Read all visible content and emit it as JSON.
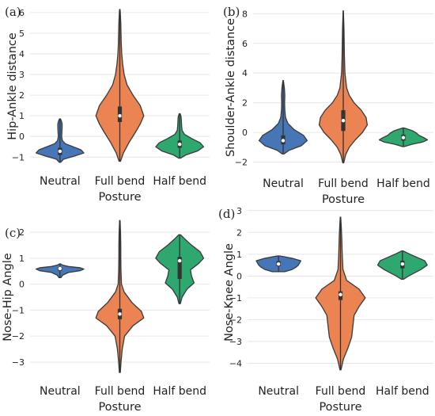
{
  "colors": {
    "grid": "#e6e6e6",
    "outline": "#3a3a3a",
    "box": "#333333",
    "median": "#ffffff",
    "series": [
      "#4676b5",
      "#eb8452",
      "#2ea86f"
    ]
  },
  "chart_data": [
    {
      "panel": "(a)",
      "type": "violin",
      "categories": [
        "Neutral",
        "Full bend",
        "Half bend"
      ],
      "xlabel": "Posture",
      "ylabel": "Hip-Ankle distance",
      "ylim": [
        -1.45,
        6.3
      ],
      "yticks": [
        -1,
        0,
        1,
        2,
        3,
        4,
        5,
        6
      ],
      "grid": true,
      "violins": [
        {
          "name": "Neutral",
          "min": -1.25,
          "max": 0.85,
          "q1": -0.9,
          "median": -0.72,
          "q3": -0.55,
          "density": [
            [
              -1.25,
              0.03
            ],
            [
              -1.1,
              0.15
            ],
            [
              -0.95,
              0.6
            ],
            [
              -0.8,
              1.0
            ],
            [
              -0.65,
              0.88
            ],
            [
              -0.5,
              0.55
            ],
            [
              -0.35,
              0.22
            ],
            [
              -0.2,
              0.1
            ],
            [
              0,
              0.07
            ],
            [
              0.2,
              0.08
            ],
            [
              0.45,
              0.09
            ],
            [
              0.6,
              0.09
            ],
            [
              0.75,
              0.06
            ],
            [
              0.85,
              0.02
            ]
          ]
        },
        {
          "name": "Full bend",
          "min": -1.2,
          "max": 6.15,
          "q1": 0.7,
          "median": 1.0,
          "q3": 1.45,
          "density": [
            [
              -1.2,
              0.03
            ],
            [
              -0.8,
              0.15
            ],
            [
              -0.3,
              0.38
            ],
            [
              0.2,
              0.65
            ],
            [
              0.6,
              0.85
            ],
            [
              1.0,
              1.0
            ],
            [
              1.5,
              0.85
            ],
            [
              2.0,
              0.55
            ],
            [
              2.5,
              0.3
            ],
            [
              3.0,
              0.18
            ],
            [
              3.5,
              0.12
            ],
            [
              4.0,
              0.08
            ],
            [
              4.5,
              0.06
            ],
            [
              5.0,
              0.05
            ],
            [
              5.5,
              0.04
            ],
            [
              6.0,
              0.02
            ],
            [
              6.15,
              0.01
            ]
          ]
        },
        {
          "name": "Half bend",
          "min": -1.05,
          "max": 1.1,
          "q1": -0.55,
          "median": -0.38,
          "q3": -0.2,
          "density": [
            [
              -1.05,
              0.04
            ],
            [
              -0.9,
              0.25
            ],
            [
              -0.7,
              0.75
            ],
            [
              -0.5,
              1.0
            ],
            [
              -0.3,
              0.85
            ],
            [
              -0.1,
              0.5
            ],
            [
              0.1,
              0.2
            ],
            [
              0.3,
              0.1
            ],
            [
              0.55,
              0.08
            ],
            [
              0.8,
              0.07
            ],
            [
              0.95,
              0.06
            ],
            [
              1.1,
              0.02
            ]
          ]
        }
      ]
    },
    {
      "panel": "(b)",
      "type": "violin",
      "categories": [
        "Neutral",
        "Full bend",
        "Half bend"
      ],
      "xlabel": "Posture",
      "ylabel": "Shoulder-Ankle distance",
      "ylim": [
        -2.45,
        8.5
      ],
      "yticks": [
        -2,
        0,
        2,
        4,
        6,
        8
      ],
      "grid": true,
      "violins": [
        {
          "name": "Neutral",
          "min": -1.45,
          "max": 3.5,
          "q1": -0.8,
          "median": -0.55,
          "q3": -0.2,
          "density": [
            [
              -1.45,
              0.04
            ],
            [
              -1.2,
              0.25
            ],
            [
              -0.9,
              0.75
            ],
            [
              -0.55,
              1.0
            ],
            [
              -0.2,
              0.85
            ],
            [
              0.2,
              0.45
            ],
            [
              0.6,
              0.2
            ],
            [
              1.0,
              0.1
            ],
            [
              1.5,
              0.07
            ],
            [
              2.0,
              0.06
            ],
            [
              2.5,
              0.07
            ],
            [
              3.0,
              0.05
            ],
            [
              3.5,
              0.01
            ]
          ]
        },
        {
          "name": "Full bend",
          "min": -2.05,
          "max": 8.2,
          "q1": 0.1,
          "median": 0.8,
          "q3": 1.5,
          "density": [
            [
              -2.05,
              0.02
            ],
            [
              -1.5,
              0.1
            ],
            [
              -1.0,
              0.25
            ],
            [
              -0.5,
              0.5
            ],
            [
              0.0,
              0.8
            ],
            [
              0.5,
              1.0
            ],
            [
              1.0,
              0.95
            ],
            [
              1.5,
              0.75
            ],
            [
              2.0,
              0.45
            ],
            [
              2.5,
              0.25
            ],
            [
              3.0,
              0.14
            ],
            [
              4.0,
              0.07
            ],
            [
              5.0,
              0.05
            ],
            [
              6.0,
              0.04
            ],
            [
              7.0,
              0.03
            ],
            [
              8.0,
              0.01
            ],
            [
              8.2,
              0.005
            ]
          ]
        },
        {
          "name": "Half bend",
          "min": -0.95,
          "max": 0.3,
          "q1": -0.55,
          "median": -0.35,
          "q3": -0.15,
          "density": [
            [
              -0.95,
              0.05
            ],
            [
              -0.8,
              0.35
            ],
            [
              -0.65,
              0.8
            ],
            [
              -0.5,
              1.0
            ],
            [
              -0.35,
              0.85
            ],
            [
              -0.2,
              0.65
            ],
            [
              -0.05,
              0.55
            ],
            [
              0.1,
              0.4
            ],
            [
              0.2,
              0.22
            ],
            [
              0.3,
              0.03
            ]
          ]
        }
      ]
    },
    {
      "panel": "(c)",
      "type": "violin",
      "categories": [
        "Neutral",
        "Full bend",
        "Half bend"
      ],
      "xlabel": "Posture",
      "ylabel": "Nose-Hip Angle",
      "ylim": [
        -3.55,
        2.55
      ],
      "yticks": [
        -3,
        -2,
        -1,
        0,
        1,
        2
      ],
      "grid": true,
      "violins": [
        {
          "name": "Neutral",
          "min": 0.25,
          "max": 0.78,
          "q1": 0.52,
          "median": 0.6,
          "q3": 0.65,
          "density": [
            [
              0.25,
              0.04
            ],
            [
              0.35,
              0.12
            ],
            [
              0.45,
              0.35
            ],
            [
              0.52,
              0.85
            ],
            [
              0.58,
              1.0
            ],
            [
              0.63,
              0.85
            ],
            [
              0.68,
              0.35
            ],
            [
              0.73,
              0.12
            ],
            [
              0.78,
              0.02
            ]
          ]
        },
        {
          "name": "Full bend",
          "min": -3.4,
          "max": 2.45,
          "q1": -1.35,
          "median": -1.15,
          "q3": -0.95,
          "density": [
            [
              -3.4,
              0.02
            ],
            [
              -3.0,
              0.05
            ],
            [
              -2.5,
              0.1
            ],
            [
              -2.0,
              0.2
            ],
            [
              -1.6,
              0.55
            ],
            [
              -1.3,
              1.0
            ],
            [
              -1.05,
              0.9
            ],
            [
              -0.7,
              0.5
            ],
            [
              -0.3,
              0.18
            ],
            [
              0.0,
              0.07
            ],
            [
              0.5,
              0.05
            ],
            [
              1.0,
              0.04
            ],
            [
              1.5,
              0.04
            ],
            [
              2.0,
              0.03
            ],
            [
              2.45,
              0.01
            ]
          ]
        },
        {
          "name": "Half bend",
          "min": -0.75,
          "max": 1.9,
          "q1": 0.2,
          "median": 0.9,
          "q3": 1.05,
          "density": [
            [
              -0.75,
              0.03
            ],
            [
              -0.5,
              0.1
            ],
            [
              -0.2,
              0.3
            ],
            [
              0.05,
              0.6
            ],
            [
              0.3,
              0.5
            ],
            [
              0.55,
              0.45
            ],
            [
              0.8,
              0.8
            ],
            [
              1.0,
              1.0
            ],
            [
              1.25,
              0.85
            ],
            [
              1.5,
              0.5
            ],
            [
              1.75,
              0.2
            ],
            [
              1.9,
              0.04
            ]
          ]
        }
      ]
    },
    {
      "panel": "(d)",
      "type": "violin",
      "categories": [
        "Neutral",
        "Full bend",
        "Half bend"
      ],
      "xlabel": "Posture",
      "ylabel": "Nose-Knee Angle",
      "ylim": [
        -4.6,
        3.1
      ],
      "yticks": [
        -4,
        -3,
        -2,
        -1,
        0,
        1,
        2,
        3
      ],
      "grid": true,
      "violins": [
        {
          "name": "Neutral",
          "min": 0.2,
          "max": 0.92,
          "q1": 0.45,
          "median": 0.55,
          "q3": 0.68,
          "density": [
            [
              0.2,
              0.25
            ],
            [
              0.3,
              0.55
            ],
            [
              0.4,
              0.7
            ],
            [
              0.5,
              0.8
            ],
            [
              0.6,
              0.85
            ],
            [
              0.7,
              0.9
            ],
            [
              0.8,
              0.6
            ],
            [
              0.88,
              0.25
            ],
            [
              0.92,
              0.05
            ]
          ]
        },
        {
          "name": "Full bend",
          "min": -4.3,
          "max": 2.7,
          "q1": -1.1,
          "median": -0.85,
          "q3": -0.7,
          "density": [
            [
              -4.3,
              0.02
            ],
            [
              -3.8,
              0.12
            ],
            [
              -3.3,
              0.3
            ],
            [
              -2.8,
              0.45
            ],
            [
              -2.3,
              0.5
            ],
            [
              -1.8,
              0.55
            ],
            [
              -1.4,
              0.75
            ],
            [
              -1.0,
              1.0
            ],
            [
              -0.6,
              0.75
            ],
            [
              -0.2,
              0.25
            ],
            [
              0.3,
              0.1
            ],
            [
              1.0,
              0.07
            ],
            [
              1.8,
              0.05
            ],
            [
              2.3,
              0.03
            ],
            [
              2.7,
              0.01
            ]
          ]
        },
        {
          "name": "Half bend",
          "min": -0.15,
          "max": 1.15,
          "q1": 0.35,
          "median": 0.55,
          "q3": 0.7,
          "density": [
            [
              -0.15,
              0.04
            ],
            [
              0.0,
              0.25
            ],
            [
              0.15,
              0.5
            ],
            [
              0.3,
              0.75
            ],
            [
              0.5,
              1.0
            ],
            [
              0.7,
              0.9
            ],
            [
              0.85,
              0.6
            ],
            [
              1.0,
              0.3
            ],
            [
              1.15,
              0.03
            ]
          ]
        }
      ]
    }
  ]
}
